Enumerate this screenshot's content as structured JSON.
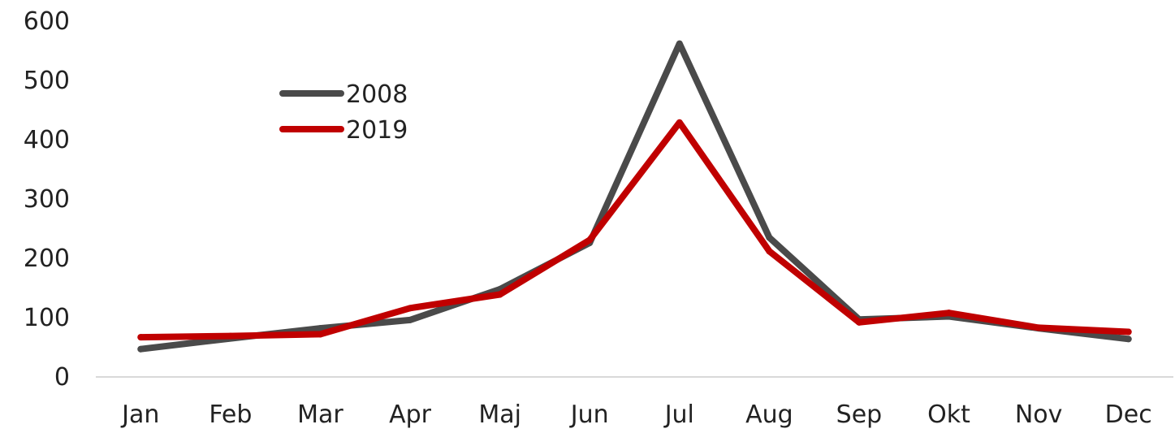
{
  "chart_data": {
    "type": "line",
    "categories": [
      "Jan",
      "Feb",
      "Mar",
      "Apr",
      "Maj",
      "Jun",
      "Jul",
      "Aug",
      "Sep",
      "Okt",
      "Nov",
      "Dec"
    ],
    "series": [
      {
        "name": "2008",
        "color": "#4a4a4a",
        "values": [
          47,
          65,
          82,
          96,
          148,
          226,
          562,
          235,
          97,
          102,
          82,
          64
        ]
      },
      {
        "name": "2019",
        "color": "#c00000",
        "values": [
          67,
          69,
          72,
          116,
          139,
          231,
          429,
          212,
          92,
          108,
          83,
          76
        ]
      }
    ],
    "yticks": [
      "0",
      "100",
      "200",
      "300",
      "400",
      "500",
      "600"
    ],
    "ylim": [
      0,
      600
    ],
    "grid": false,
    "legend": "top-left"
  }
}
